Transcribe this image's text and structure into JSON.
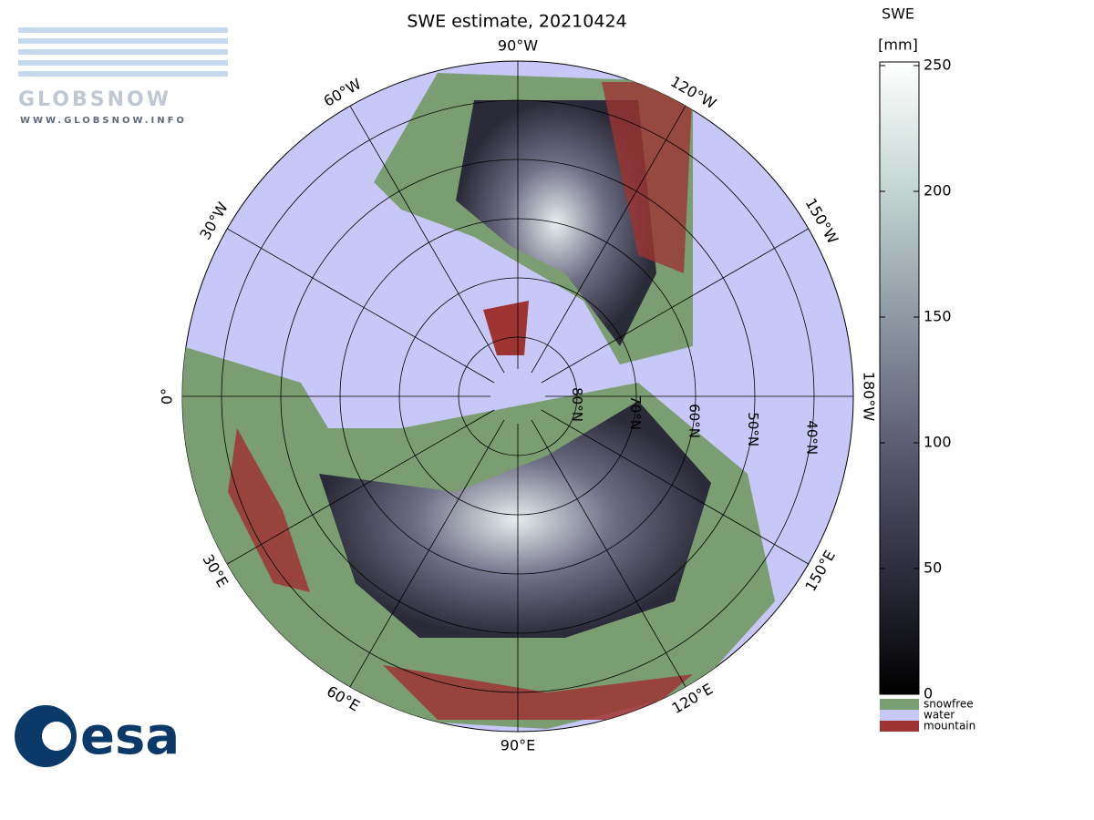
{
  "header": {
    "title": "SWE estimate, 20210424",
    "logo_top": "GLOBSNOW",
    "logo_url": "WWW.GLOBSNOW.INFO",
    "logo_bottom": "esa"
  },
  "map": {
    "meridians": [
      {
        "value": 0,
        "label": "0°"
      },
      {
        "value": -30,
        "label": "30°W"
      },
      {
        "value": -60,
        "label": "60°W"
      },
      {
        "value": -90,
        "label": "90°W"
      },
      {
        "value": -120,
        "label": "120°W"
      },
      {
        "value": -150,
        "label": "150°W"
      },
      {
        "value": -180,
        "label": "180°W"
      },
      {
        "value": 150,
        "label": "150°E"
      },
      {
        "value": 120,
        "label": "120°E"
      },
      {
        "value": 90,
        "label": "90°E"
      },
      {
        "value": 60,
        "label": "60°E"
      },
      {
        "value": 30,
        "label": "30°E"
      }
    ],
    "parallels": [
      {
        "value": 40,
        "label": "40°N"
      },
      {
        "value": 50,
        "label": "50°N"
      },
      {
        "value": 60,
        "label": "60°N"
      },
      {
        "value": 70,
        "label": "70°N"
      },
      {
        "value": 80,
        "label": "80°N"
      }
    ]
  },
  "colorbar": {
    "title": "SWE",
    "unit": "[mm]",
    "lim": [
      0,
      250
    ],
    "ticks": [
      0,
      50,
      100,
      150,
      200,
      250
    ],
    "colors": [
      "#000000",
      "#2e2e3e",
      "#5e5e74",
      "#8f9aa4",
      "#c4d6d2",
      "#ffffff"
    ],
    "classes": [
      {
        "name": "snowfree",
        "color": "#7a9e72"
      },
      {
        "name": "water",
        "color": "#c8c8f8"
      },
      {
        "name": "mountain",
        "color": "#9e3432"
      }
    ]
  }
}
